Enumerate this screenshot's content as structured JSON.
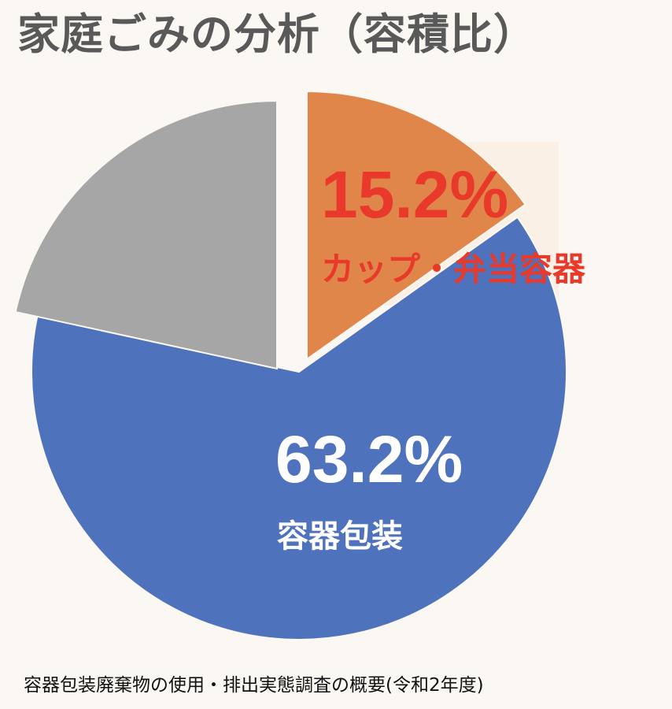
{
  "chart_data": {
    "type": "pie",
    "title": "家庭ごみの分析（容積比）",
    "source": "容器包装廃棄物の使用・排出実態調査の概要(令和2年度)",
    "start_angle_deg": 0,
    "slices": [
      {
        "name": "カップ・弁当容器",
        "value": 15.2,
        "value_label": "15.2%",
        "color": "#e0864a",
        "label_color": "#e8392a",
        "highlight_bg": "#fbeee3"
      },
      {
        "name": "容器包装",
        "value": 63.2,
        "value_label": "63.2%",
        "color": "#4f72bd",
        "label_color": "#ffffff"
      },
      {
        "name": "",
        "value": 21.6,
        "value_label": "",
        "color": "#a6a6a6"
      }
    ]
  }
}
